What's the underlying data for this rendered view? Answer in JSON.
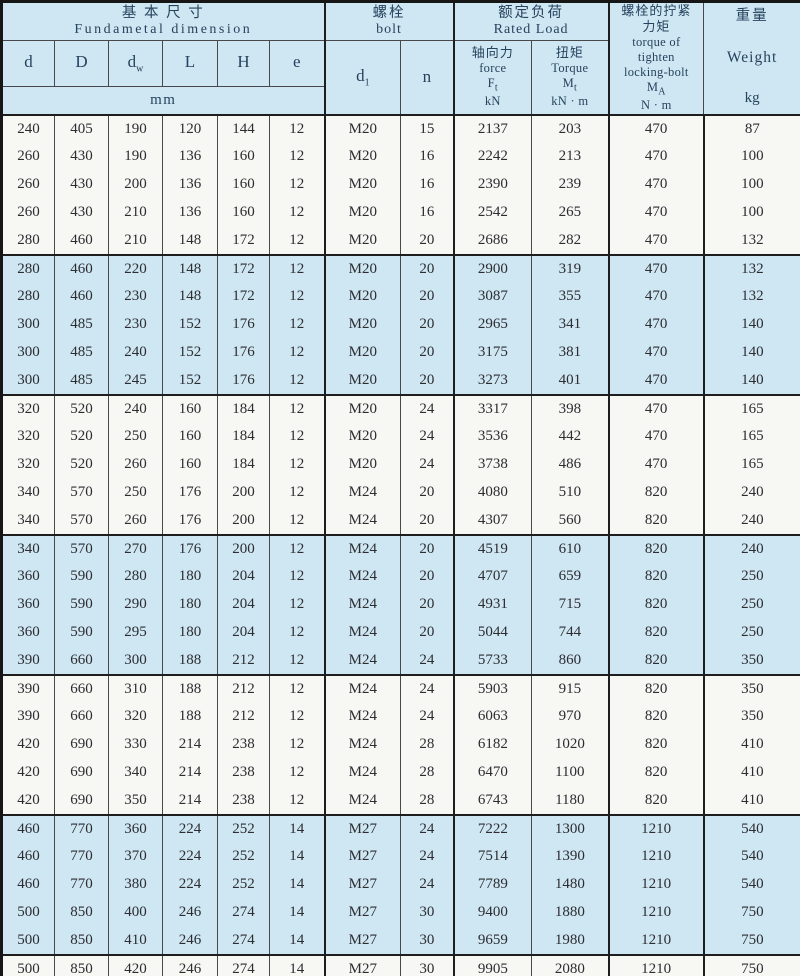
{
  "header": {
    "fundamental": {
      "zh": "基 本 尺 寸",
      "en": "Fundametal  dimension"
    },
    "dim_cols": [
      {
        "main": "d",
        "sub": ""
      },
      {
        "main": "D",
        "sub": ""
      },
      {
        "main": "d",
        "sub": "w"
      },
      {
        "main": "L",
        "sub": ""
      },
      {
        "main": "H",
        "sub": ""
      },
      {
        "main": "e",
        "sub": ""
      }
    ],
    "mm_label": "mm",
    "bolt": {
      "zh": "螺栓",
      "en": "bolt"
    },
    "d1": {
      "main": "d",
      "sub": "1"
    },
    "n_label": "n",
    "rated": {
      "zh": "额定负荷",
      "en": "Rated  Load"
    },
    "force": {
      "zh": "轴向力",
      "en": "force",
      "sym": "F",
      "sym_sub": "t",
      "unit": "kN"
    },
    "torque": {
      "zh": "扭矩",
      "en": "Torque",
      "sym": "M",
      "sym_sub": "t",
      "unit": "kN · m"
    },
    "locking": {
      "zh1": "螺栓的拧紧",
      "zh2": "力矩",
      "en1": "torque of",
      "en2": "tighten",
      "en3": "locking-bolt",
      "sym": "M",
      "sym_sub": "A",
      "unit": "N · m"
    },
    "weight": {
      "zh": "重量",
      "en": "Weight",
      "unit": "kg"
    }
  },
  "table": {
    "columns": [
      "d",
      "D",
      "dw",
      "L",
      "H",
      "e",
      "d1",
      "n",
      "force-Ft-kN",
      "torque-Mt-kNm",
      "locking-torque-MA-Nm",
      "weight-kg"
    ],
    "rows": [
      [
        240,
        405,
        190,
        120,
        144,
        12,
        "M20",
        15,
        2137,
        203,
        470,
        87
      ],
      [
        260,
        430,
        190,
        136,
        160,
        12,
        "M20",
        16,
        2242,
        213,
        470,
        100
      ],
      [
        260,
        430,
        200,
        136,
        160,
        12,
        "M20",
        16,
        2390,
        239,
        470,
        100
      ],
      [
        260,
        430,
        210,
        136,
        160,
        12,
        "M20",
        16,
        2542,
        265,
        470,
        100
      ],
      [
        280,
        460,
        210,
        148,
        172,
        12,
        "M20",
        20,
        2686,
        282,
        470,
        132
      ],
      [
        280,
        460,
        220,
        148,
        172,
        12,
        "M20",
        20,
        2900,
        319,
        470,
        132
      ],
      [
        280,
        460,
        230,
        148,
        172,
        12,
        "M20",
        20,
        3087,
        355,
        470,
        132
      ],
      [
        300,
        485,
        230,
        152,
        176,
        12,
        "M20",
        20,
        2965,
        341,
        470,
        140
      ],
      [
        300,
        485,
        240,
        152,
        176,
        12,
        "M20",
        20,
        3175,
        381,
        470,
        140
      ],
      [
        300,
        485,
        245,
        152,
        176,
        12,
        "M20",
        20,
        3273,
        401,
        470,
        140
      ],
      [
        320,
        520,
        240,
        160,
        184,
        12,
        "M20",
        24,
        3317,
        398,
        470,
        165
      ],
      [
        320,
        520,
        250,
        160,
        184,
        12,
        "M20",
        24,
        3536,
        442,
        470,
        165
      ],
      [
        320,
        520,
        260,
        160,
        184,
        12,
        "M20",
        24,
        3738,
        486,
        470,
        165
      ],
      [
        340,
        570,
        250,
        176,
        200,
        12,
        "M24",
        20,
        4080,
        510,
        820,
        240
      ],
      [
        340,
        570,
        260,
        176,
        200,
        12,
        "M24",
        20,
        4307,
        560,
        820,
        240
      ],
      [
        340,
        570,
        270,
        176,
        200,
        12,
        "M24",
        20,
        4519,
        610,
        820,
        240
      ],
      [
        360,
        590,
        280,
        180,
        204,
        12,
        "M24",
        20,
        4707,
        659,
        820,
        250
      ],
      [
        360,
        590,
        290,
        180,
        204,
        12,
        "M24",
        20,
        4931,
        715,
        820,
        250
      ],
      [
        360,
        590,
        295,
        180,
        204,
        12,
        "M24",
        20,
        5044,
        744,
        820,
        250
      ],
      [
        390,
        660,
        300,
        188,
        212,
        12,
        "M24",
        24,
        5733,
        860,
        820,
        350
      ],
      [
        390,
        660,
        310,
        188,
        212,
        12,
        "M24",
        24,
        5903,
        915,
        820,
        350
      ],
      [
        390,
        660,
        320,
        188,
        212,
        12,
        "M24",
        24,
        6063,
        970,
        820,
        350
      ],
      [
        420,
        690,
        330,
        214,
        238,
        12,
        "M24",
        28,
        6182,
        1020,
        820,
        410
      ],
      [
        420,
        690,
        340,
        214,
        238,
        12,
        "M24",
        28,
        6470,
        1100,
        820,
        410
      ],
      [
        420,
        690,
        350,
        214,
        238,
        12,
        "M24",
        28,
        6743,
        1180,
        820,
        410
      ],
      [
        460,
        770,
        360,
        224,
        252,
        14,
        "M27",
        24,
        7222,
        1300,
        1210,
        540
      ],
      [
        460,
        770,
        370,
        224,
        252,
        14,
        "M27",
        24,
        7514,
        1390,
        1210,
        540
      ],
      [
        460,
        770,
        380,
        224,
        252,
        14,
        "M27",
        24,
        7789,
        1480,
        1210,
        540
      ],
      [
        500,
        850,
        400,
        246,
        274,
        14,
        "M27",
        30,
        9400,
        1880,
        1210,
        750
      ],
      [
        500,
        850,
        410,
        246,
        274,
        14,
        "M27",
        30,
        9659,
        1980,
        1210,
        750
      ],
      [
        500,
        850,
        420,
        246,
        274,
        14,
        "M27",
        30,
        9905,
        2080,
        1210,
        750
      ]
    ]
  },
  "colors": {
    "band_blue": "#cee7f3",
    "band_white": "#f7f7f4",
    "header_text": "#27425d",
    "data_text": "#2c2c31",
    "border_heavy": "#161616",
    "border_light": "#47474c"
  }
}
